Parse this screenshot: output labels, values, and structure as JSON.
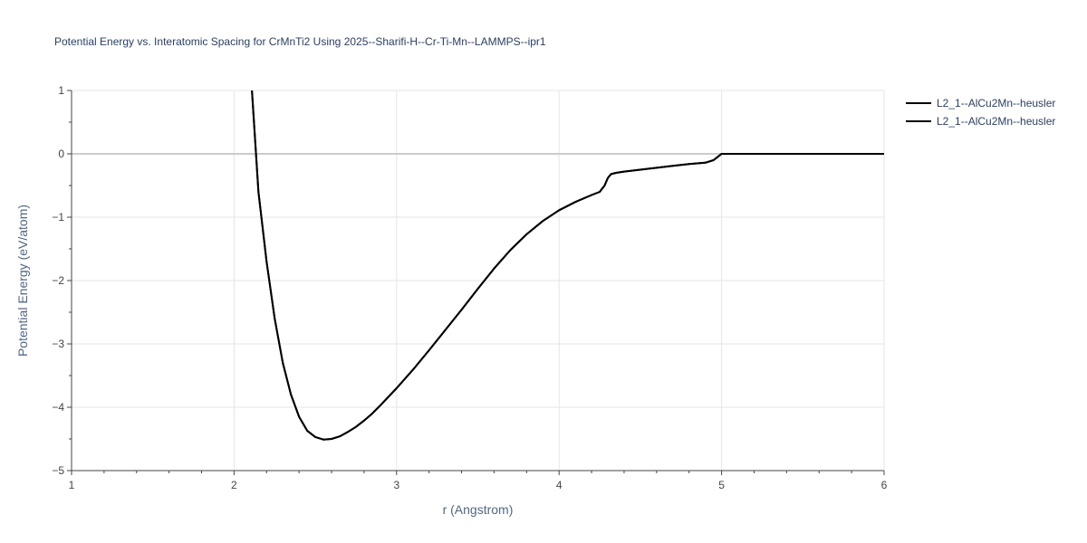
{
  "chart_data": {
    "type": "line",
    "title": "Potential Energy vs. Interatomic Spacing for CrMnTi2 Using 2025--Sharifi-H--Cr-Ti-Mn--LAMMPS--ipr1",
    "xlabel": "r (Angstrom)",
    "ylabel": "Potential Energy (eV/atom)",
    "xlim": [
      1,
      6
    ],
    "ylim": [
      -5,
      1
    ],
    "x_ticks": [
      "1",
      "2",
      "3",
      "4",
      "5",
      "6"
    ],
    "y_ticks": [
      "1",
      "0",
      "−1",
      "−2",
      "−3",
      "−4",
      "−5"
    ],
    "y_tick_values": [
      1,
      0,
      -1,
      -2,
      -3,
      -4,
      -5
    ],
    "x_tick_values": [
      1,
      2,
      3,
      4,
      5,
      6
    ],
    "grid": true,
    "legend_position": "top-right",
    "colors": {
      "series": "#000000",
      "grid": "#e5e5e5",
      "zeroline": "#cccccc"
    },
    "series": [
      {
        "name": "L2_1--AlCu2Mn--heusler",
        "x": [
          2.11,
          2.15,
          2.2,
          2.25,
          2.3,
          2.35,
          2.4,
          2.45,
          2.5,
          2.55,
          2.6,
          2.65,
          2.7,
          2.75,
          2.8,
          2.85,
          2.9,
          3.0,
          3.1,
          3.2,
          3.3,
          3.4,
          3.5,
          3.6,
          3.7,
          3.8,
          3.9,
          4.0,
          4.1,
          4.2,
          4.25,
          4.28,
          4.3,
          4.32,
          4.35,
          4.4,
          4.5,
          4.6,
          4.7,
          4.8,
          4.9,
          4.95,
          4.98,
          5.0,
          5.1,
          5.5,
          6.0
        ],
        "y": [
          1.0,
          -0.6,
          -1.7,
          -2.6,
          -3.3,
          -3.8,
          -4.15,
          -4.37,
          -4.47,
          -4.51,
          -4.5,
          -4.46,
          -4.39,
          -4.31,
          -4.21,
          -4.1,
          -3.97,
          -3.7,
          -3.41,
          -3.1,
          -2.78,
          -2.46,
          -2.13,
          -1.81,
          -1.52,
          -1.27,
          -1.06,
          -0.89,
          -0.76,
          -0.65,
          -0.6,
          -0.5,
          -0.38,
          -0.32,
          -0.3,
          -0.28,
          -0.25,
          -0.22,
          -0.19,
          -0.16,
          -0.14,
          -0.1,
          -0.04,
          0.0,
          0.0,
          0.0,
          0.0
        ]
      },
      {
        "name": "L2_1--AlCu2Mn--heusler",
        "x": [
          2.11,
          2.15,
          2.2,
          2.25,
          2.3,
          2.35,
          2.4,
          2.45,
          2.5,
          2.55,
          2.6,
          2.65,
          2.7,
          2.75,
          2.8,
          2.85,
          2.9,
          3.0,
          3.1,
          3.2,
          3.3,
          3.4,
          3.5,
          3.6,
          3.7,
          3.8,
          3.9,
          4.0,
          4.1,
          4.2,
          4.25,
          4.28,
          4.3,
          4.32,
          4.35,
          4.4,
          4.5,
          4.6,
          4.7,
          4.8,
          4.9,
          4.95,
          4.98,
          5.0,
          5.1,
          5.5,
          6.0
        ],
        "y": [
          1.0,
          -0.6,
          -1.7,
          -2.6,
          -3.3,
          -3.8,
          -4.15,
          -4.37,
          -4.47,
          -4.51,
          -4.5,
          -4.46,
          -4.39,
          -4.31,
          -4.21,
          -4.1,
          -3.97,
          -3.7,
          -3.41,
          -3.1,
          -2.78,
          -2.46,
          -2.13,
          -1.81,
          -1.52,
          -1.27,
          -1.06,
          -0.89,
          -0.76,
          -0.65,
          -0.6,
          -0.5,
          -0.38,
          -0.32,
          -0.3,
          -0.28,
          -0.25,
          -0.22,
          -0.19,
          -0.16,
          -0.14,
          -0.1,
          -0.04,
          0.0,
          0.0,
          0.0,
          0.0
        ]
      }
    ]
  }
}
